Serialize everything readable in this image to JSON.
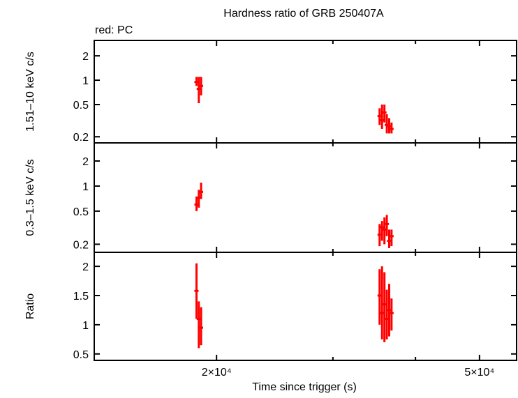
{
  "chart_data": {
    "type": "scatter",
    "title": "Hardness ratio of GRB 250407A",
    "legend_note": "red: PC",
    "xlabel": "Time since trigger (s)",
    "xscale": "log",
    "xlim": [
      13060,
      56900
    ],
    "xticks": [
      {
        "value": 20000,
        "label": "2×10⁴"
      },
      {
        "value": 30000,
        "label": ""
      },
      {
        "value": 40000,
        "label": ""
      },
      {
        "value": 50000,
        "label": "5×10⁴"
      }
    ],
    "series_color": "#ff0000",
    "panels": [
      {
        "ylabel": "1.51–10 keV c/s",
        "yscale": "log",
        "ylim": [
          0.168,
          3.1
        ],
        "yticks": [
          {
            "value": 0.2,
            "label": "0.2"
          },
          {
            "value": 0.5,
            "label": "0.5"
          },
          {
            "value": 1,
            "label": "1"
          },
          {
            "value": 2,
            "label": "2"
          }
        ],
        "points": [
          [
            18650,
            0.95,
            0.85,
            1.1
          ],
          [
            18800,
            0.78,
            0.52,
            1.1
          ],
          [
            18950,
            0.85,
            0.65,
            1.1
          ],
          [
            35300,
            0.36,
            0.28,
            0.45
          ],
          [
            35600,
            0.32,
            0.25,
            0.5
          ],
          [
            35900,
            0.4,
            0.3,
            0.5
          ],
          [
            36200,
            0.28,
            0.22,
            0.38
          ],
          [
            36500,
            0.27,
            0.22,
            0.34
          ],
          [
            36800,
            0.25,
            0.22,
            0.3
          ]
        ]
      },
      {
        "ylabel": "0.3–1.5 keV c/s",
        "yscale": "log",
        "ylim": [
          0.16,
          3.3
        ],
        "yticks": [
          {
            "value": 0.2,
            "label": "0.2"
          },
          {
            "value": 0.5,
            "label": "0.5"
          },
          {
            "value": 1,
            "label": "1"
          },
          {
            "value": 2,
            "label": "2"
          }
        ],
        "points": [
          [
            18650,
            0.6,
            0.5,
            0.75
          ],
          [
            18800,
            0.72,
            0.55,
            0.9
          ],
          [
            18950,
            0.85,
            0.7,
            1.1
          ],
          [
            35300,
            0.26,
            0.19,
            0.35
          ],
          [
            35600,
            0.32,
            0.22,
            0.38
          ],
          [
            35900,
            0.3,
            0.2,
            0.42
          ],
          [
            36200,
            0.35,
            0.25,
            0.45
          ],
          [
            36500,
            0.22,
            0.18,
            0.3
          ],
          [
            36800,
            0.25,
            0.19,
            0.3
          ]
        ]
      },
      {
        "ylabel": "Ratio",
        "yscale": "linear",
        "ylim": [
          0.39,
          2.24
        ],
        "yticks": [
          {
            "value": 0.5,
            "label": "0.5"
          },
          {
            "value": 1,
            "label": "1"
          },
          {
            "value": 1.5,
            "label": "1.5"
          },
          {
            "value": 2,
            "label": "2"
          }
        ],
        "points": [
          [
            18650,
            1.58,
            1.1,
            2.05
          ],
          [
            18800,
            1.1,
            0.6,
            1.4
          ],
          [
            18950,
            0.95,
            0.65,
            1.3
          ],
          [
            35300,
            1.5,
            1.0,
            1.95
          ],
          [
            35600,
            1.2,
            0.75,
            2.0
          ],
          [
            35900,
            1.35,
            0.7,
            1.9
          ],
          [
            36200,
            1.1,
            0.75,
            1.6
          ],
          [
            36500,
            1.25,
            0.8,
            1.7
          ],
          [
            36800,
            1.2,
            0.9,
            1.45
          ]
        ]
      }
    ]
  }
}
